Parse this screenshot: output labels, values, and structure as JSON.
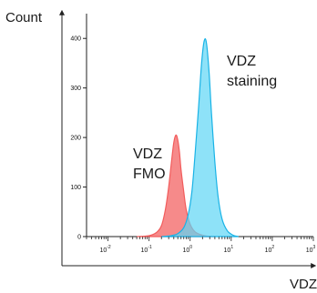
{
  "chart_data": {
    "type": "area",
    "xlabel": "VDZ",
    "ylabel": "Count",
    "xscale": "log",
    "xlim": [
      0.003,
      1000
    ],
    "ylim": [
      0,
      450
    ],
    "y_ticks": [
      0,
      100,
      200,
      300,
      400
    ],
    "x_ticks": [
      {
        "base": "10",
        "exp": "-2",
        "value": 0.01
      },
      {
        "base": "10",
        "exp": "-1",
        "value": 0.1
      },
      {
        "base": "10",
        "exp": "0",
        "value": 1
      },
      {
        "base": "10",
        "exp": "1",
        "value": 10
      },
      {
        "base": "10",
        "exp": "2",
        "value": 100
      },
      {
        "base": "10",
        "exp": "3",
        "value": 1000
      }
    ],
    "grid": false,
    "legend": "none",
    "series": [
      {
        "name_lines": [
          "VDZ",
          "FMO"
        ],
        "color": "#f25c5c",
        "fill": "#f47676",
        "x": [
          0.05,
          0.1,
          0.15,
          0.2,
          0.25,
          0.3,
          0.35,
          0.4,
          0.45,
          0.5,
          0.55,
          0.6,
          0.7,
          0.8,
          1.0,
          1.3,
          1.8,
          2.5,
          4
        ],
        "y": [
          0,
          2,
          8,
          22,
          55,
          100,
          150,
          190,
          205,
          195,
          170,
          135,
          90,
          55,
          25,
          10,
          4,
          1,
          0
        ]
      },
      {
        "name_lines": [
          "VDZ",
          "staining"
        ],
        "color": "#19b3e6",
        "fill": "#5ed6f5",
        "x": [
          0.2,
          0.35,
          0.5,
          0.7,
          0.9,
          1.1,
          1.3,
          1.6,
          1.9,
          2.2,
          2.5,
          2.9,
          3.3,
          4.0,
          4.8,
          6.0,
          8.0,
          11,
          15
        ],
        "y": [
          0,
          2,
          6,
          18,
          45,
          90,
          160,
          260,
          350,
          395,
          390,
          330,
          250,
          150,
          80,
          35,
          12,
          3,
          0
        ]
      }
    ]
  }
}
